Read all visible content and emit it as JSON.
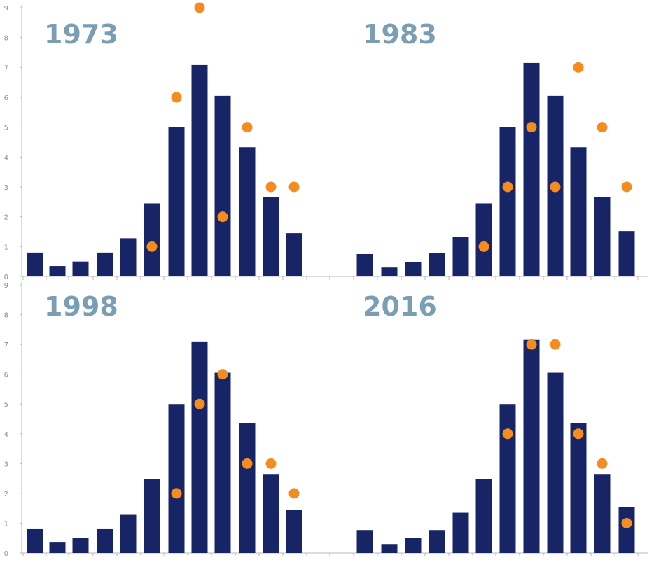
{
  "colors": {
    "bar": "#172465",
    "dot": "#f58c1f",
    "year_label": "#7a9fb5",
    "axis": "#b5b9c0",
    "tick_text": "#8a8f99"
  },
  "chart_data": [
    {
      "type": "bar",
      "title": "1973",
      "ylim": [
        0,
        9
      ],
      "yticks": [
        "0",
        "1",
        "2",
        "3",
        "4",
        "5",
        "6",
        "7",
        "8",
        "9"
      ],
      "grid": false,
      "series": [
        {
          "kind": "bar",
          "values": [
            0.8,
            0.35,
            0.5,
            0.8,
            1.28,
            2.45,
            5.0,
            7.08,
            6.05,
            4.33,
            2.65,
            1.45
          ]
        },
        {
          "kind": "dot",
          "values": [
            null,
            null,
            null,
            null,
            null,
            1,
            6,
            9,
            2,
            5,
            3,
            3
          ]
        }
      ]
    },
    {
      "type": "bar",
      "title": "1983",
      "ylim": [
        0,
        9
      ],
      "yticks": [
        "0",
        "1",
        "2",
        "3",
        "4",
        "5",
        "6",
        "7",
        "8",
        "9"
      ],
      "grid": false,
      "series": [
        {
          "kind": "bar",
          "values": [
            0.75,
            0.3,
            0.48,
            0.78,
            1.33,
            2.45,
            5.0,
            7.15,
            6.05,
            4.33,
            2.65,
            1.52
          ]
        },
        {
          "kind": "dot",
          "values": [
            null,
            null,
            null,
            null,
            null,
            1,
            3,
            5,
            3,
            7,
            5,
            3
          ]
        }
      ]
    },
    {
      "type": "bar",
      "title": "1998",
      "ylim": [
        0,
        9
      ],
      "yticks": [
        "0",
        "1",
        "2",
        "3",
        "4",
        "5",
        "6",
        "7",
        "8",
        "9"
      ],
      "grid": false,
      "series": [
        {
          "kind": "bar",
          "values": [
            0.8,
            0.35,
            0.5,
            0.8,
            1.28,
            2.48,
            5.0,
            7.1,
            6.05,
            4.35,
            2.65,
            1.45
          ]
        },
        {
          "kind": "dot",
          "values": [
            null,
            null,
            null,
            null,
            null,
            null,
            2,
            5,
            6,
            3,
            3,
            2
          ]
        }
      ]
    },
    {
      "type": "bar",
      "title": "2016",
      "ylim": [
        0,
        9
      ],
      "yticks": [
        "0",
        "1",
        "2",
        "3",
        "4",
        "5",
        "6",
        "7",
        "8",
        "9"
      ],
      "grid": false,
      "series": [
        {
          "kind": "bar",
          "values": [
            0.77,
            0.3,
            0.5,
            0.77,
            1.35,
            2.48,
            5.0,
            7.15,
            6.05,
            4.35,
            2.65,
            1.55
          ]
        },
        {
          "kind": "dot",
          "values": [
            null,
            null,
            null,
            null,
            null,
            null,
            4,
            7,
            7,
            4,
            3,
            1
          ]
        }
      ]
    }
  ]
}
